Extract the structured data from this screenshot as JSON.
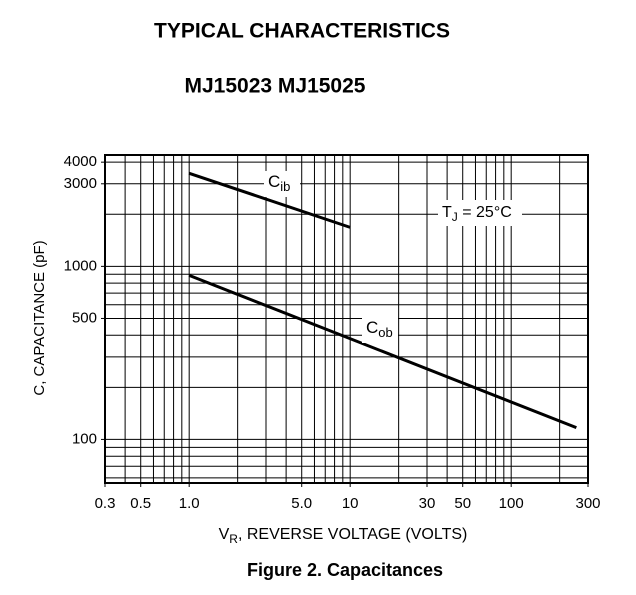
{
  "chart_data": {
    "type": "line",
    "title": "TYPICAL CHARACTERISTICS",
    "subtitle": "MJ15023 MJ15025",
    "caption": "Figure 2. Capacitances",
    "xlabel_parts": [
      "V",
      "R",
      ", REVERSE VOLTAGE (VOLTS)"
    ],
    "ylabel": "C, CAPACITANCE (pF)",
    "log_x": true,
    "log_y": true,
    "grid": true,
    "xlim": [
      0.3,
      300
    ],
    "ylim": [
      56,
      4400
    ],
    "xticks": [
      0.3,
      0.5,
      {
        "value": 1,
        "label": "1.0"
      },
      {
        "value": 5,
        "label": "5.0"
      },
      10,
      30,
      50,
      100,
      300
    ],
    "yticks": [
      100,
      500,
      1000,
      3000,
      4000
    ],
    "xgrid": [
      0.3,
      0.4,
      0.5,
      0.6,
      0.7,
      0.8,
      0.9,
      1,
      2,
      3,
      4,
      5,
      6,
      7,
      8,
      9,
      10,
      20,
      30,
      40,
      50,
      60,
      70,
      80,
      90,
      100,
      200,
      300
    ],
    "ygrid": [
      60,
      70,
      80,
      90,
      100,
      200,
      300,
      400,
      500,
      600,
      700,
      800,
      900,
      1000,
      2000,
      3000,
      4000
    ],
    "series": [
      {
        "name_parts": [
          "C",
          "ib"
        ],
        "color": "#000000",
        "x": [
          1,
          10
        ],
        "values": [
          3450,
          1680
        ]
      },
      {
        "name_parts": [
          "C",
          "ob"
        ],
        "color": "#000000",
        "x": [
          1,
          254
        ],
        "values": [
          887,
          117
        ]
      }
    ],
    "annotation_parts": [
      "T",
      "J",
      " = 25°C"
    ]
  }
}
